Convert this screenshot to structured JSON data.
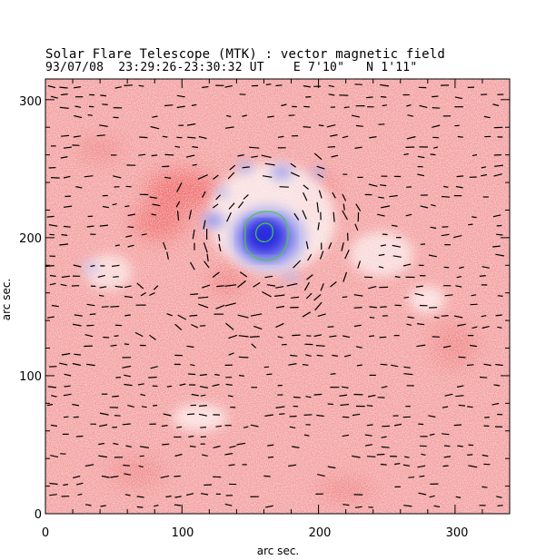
{
  "figure": {
    "title": "Solar Flare Telescope (MTK) : vector magnetic field",
    "subtitle": "93/07/08  23:29:26-23:30:32 UT    E 7'10\"   N 1'11\"",
    "xlabel": "arc sec.",
    "ylabel": "arc sec.",
    "x_ticks": [
      "0",
      "100",
      "200",
      "300"
    ],
    "y_ticks": [
      "0",
      "100",
      "200",
      "300"
    ],
    "xlim": [
      0,
      340
    ],
    "ylim": [
      0,
      315
    ]
  },
  "colors": {
    "positive_polarity": "#f08080",
    "negative_polarity": "#3a3ae0",
    "contour": "#44cc44",
    "vector": "#000000"
  },
  "image_content": {
    "description_icon": "magnetogram-map",
    "sunspot_center_arcsec": [
      160,
      202
    ],
    "contour_levels": 2
  }
}
